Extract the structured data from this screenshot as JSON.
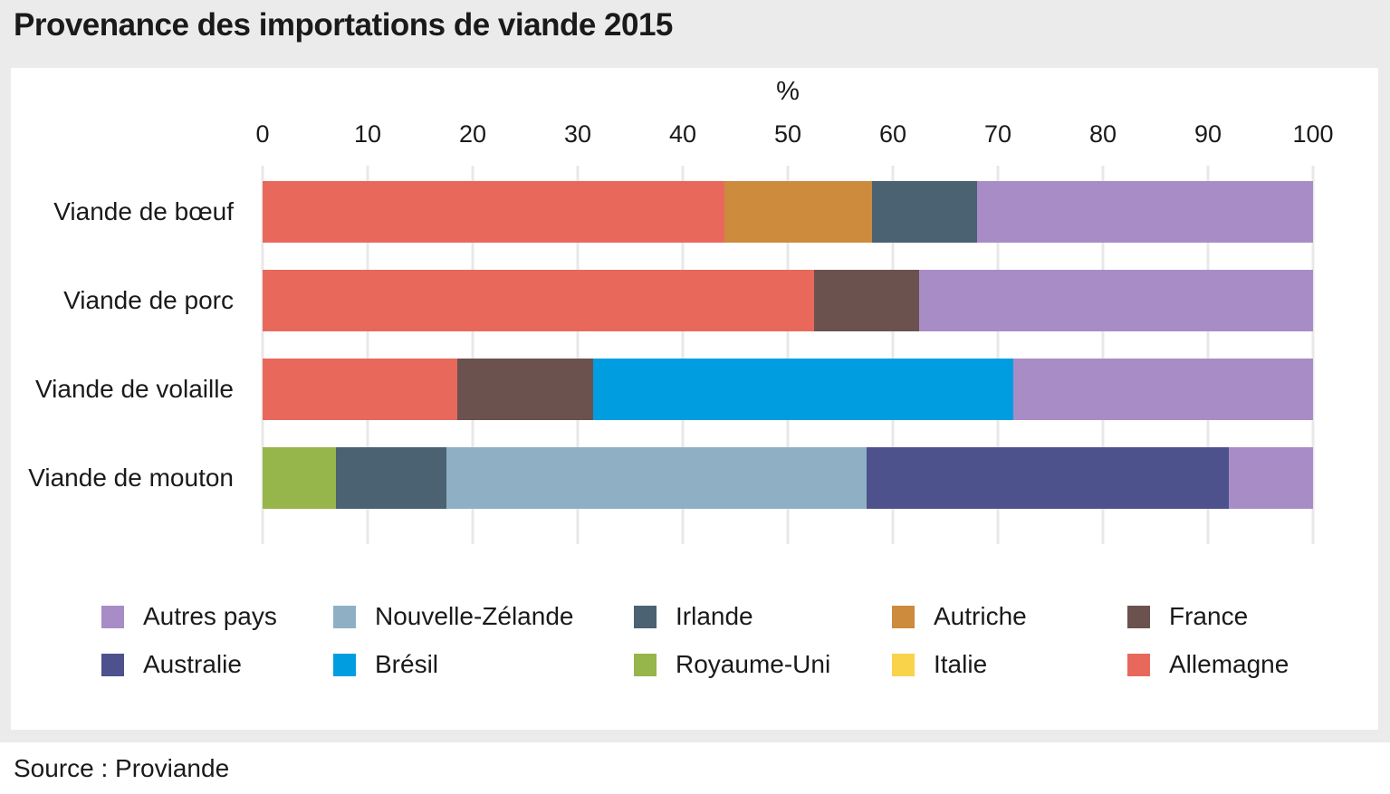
{
  "title": "Provenance des importations de viande 2015",
  "source_label": "Source : Proviande",
  "chart_data": {
    "type": "bar",
    "orientation": "horizontal",
    "stacked": true,
    "title": "Provenance des importations de viande 2015",
    "axis_unit_label": "%",
    "xlabel": "%",
    "ylabel": "",
    "xlim": [
      0,
      100
    ],
    "ticks": [
      0,
      10,
      20,
      30,
      40,
      50,
      60,
      70,
      80,
      90,
      100
    ],
    "grid": true,
    "legend_position": "bottom",
    "categories": [
      "Viande de bœuf",
      "Viande de porc",
      "Viande de volaille",
      "Viande de mouton"
    ],
    "series": [
      {
        "name": "Allemagne",
        "values": [
          44,
          52.5,
          18.5,
          0
        ]
      },
      {
        "name": "Italie",
        "values": [
          0,
          0,
          0,
          0
        ]
      },
      {
        "name": "Autriche",
        "values": [
          14,
          0,
          0,
          0
        ]
      },
      {
        "name": "France",
        "values": [
          0,
          10,
          13,
          0
        ]
      },
      {
        "name": "Brésil",
        "values": [
          0,
          0,
          40,
          0
        ]
      },
      {
        "name": "Royaume-Uni",
        "values": [
          0,
          0,
          0,
          7
        ]
      },
      {
        "name": "Irlande",
        "values": [
          10,
          0,
          0,
          10.5
        ]
      },
      {
        "name": "Nouvelle-Zélande",
        "values": [
          0,
          0,
          0,
          40
        ]
      },
      {
        "name": "Australie",
        "values": [
          0,
          0,
          0,
          34.5
        ]
      },
      {
        "name": "Autres pays",
        "values": [
          32,
          37.5,
          28.5,
          8
        ]
      }
    ],
    "legend": [
      {
        "label": "Autres pays",
        "color": "#A88CC6"
      },
      {
        "label": "Nouvelle-Zélande",
        "color": "#8FB0C4"
      },
      {
        "label": "Irlande",
        "color": "#4A6272"
      },
      {
        "label": "Autriche",
        "color": "#CC8B3D"
      },
      {
        "label": "France",
        "color": "#6B524F"
      },
      {
        "label": "Australie",
        "color": "#4D518C"
      },
      {
        "label": "Brésil",
        "color": "#009EE0"
      },
      {
        "label": "Royaume-Uni",
        "color": "#96B54A"
      },
      {
        "label": "Italie",
        "color": "#F9D349"
      },
      {
        "label": "Allemagne",
        "color": "#E8695B"
      }
    ]
  }
}
